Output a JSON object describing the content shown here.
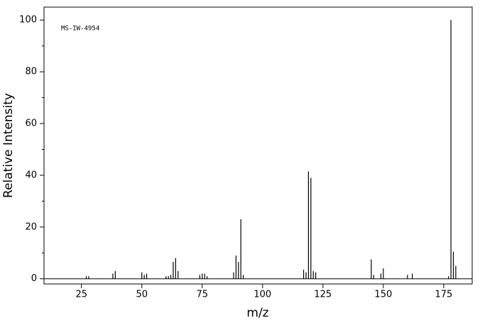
{
  "chart_data": {
    "type": "bar",
    "annotation": "MS-IW-4954",
    "x_label": "m/z",
    "y_label": "Relative Intensity",
    "color": "#000000",
    "x": [
      27,
      28,
      38,
      39,
      50,
      51,
      52,
      60,
      61,
      62,
      63,
      64,
      65,
      74,
      75,
      76,
      77,
      88,
      89,
      90,
      91,
      92,
      117,
      118,
      119,
      120,
      121,
      122,
      145,
      146,
      149,
      150,
      160,
      162,
      177,
      178,
      179,
      180
    ],
    "values": [
      1,
      1,
      2,
      3,
      2.5,
      1.5,
      2,
      1,
      1,
      1.5,
      6.5,
      8,
      3,
      1.5,
      2,
      2,
      1,
      2.5,
      9,
      6.5,
      23,
      1.5,
      3.5,
      2.5,
      41.5,
      39,
      3,
      2.5,
      7.5,
      1.5,
      2,
      4,
      1.5,
      2,
      1,
      100,
      10.5,
      5
    ],
    "xlim": [
      9.5,
      186.8
    ],
    "ylim": [
      -2,
      105
    ],
    "xticks": [
      25,
      50,
      75,
      100,
      125,
      150,
      175
    ],
    "yticks": [
      0,
      20,
      40,
      60,
      80,
      100
    ],
    "yminorticks": [
      10,
      30,
      50,
      70,
      90
    ]
  }
}
